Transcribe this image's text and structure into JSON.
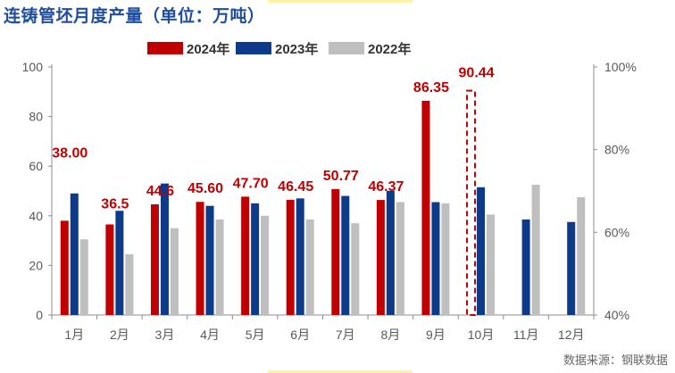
{
  "title": "连铸管坯月度产量（单位：万吨）",
  "source": "数据来源：钢联数据",
  "chart_data": {
    "type": "bar",
    "categories": [
      "1月",
      "2月",
      "3月",
      "4月",
      "5月",
      "6月",
      "7月",
      "8月",
      "9月",
      "10月",
      "11月",
      "12月"
    ],
    "series": [
      {
        "name": "2024年",
        "color": "#c00000",
        "values": [
          38.0,
          36.5,
          44.6,
          45.6,
          47.7,
          46.45,
          50.77,
          46.37,
          86.35,
          90.44,
          null,
          null
        ]
      },
      {
        "name": "2023年",
        "color": "#0e3a8a",
        "values": [
          49,
          42,
          53,
          44,
          45,
          47,
          48,
          50,
          45.5,
          51.5,
          38.5,
          37.5
        ]
      },
      {
        "name": "2022年",
        "color": "#bfbfbf",
        "values": [
          30.5,
          24.5,
          35,
          38.5,
          40,
          38.5,
          37,
          45.5,
          45,
          40.5,
          52.5,
          47.5
        ]
      }
    ],
    "data_labels": [
      "38.00",
      "36.5",
      "44.6",
      "45.60",
      "47.70",
      "46.45",
      "50.77",
      "46.37",
      "86.35",
      "90.44"
    ],
    "ylim": [
      0,
      100
    ],
    "yticks": [
      "0",
      "20",
      "40",
      "60",
      "80",
      "100"
    ],
    "y2ticks": [
      "40%",
      "60%",
      "80%",
      "100%"
    ],
    "y2lim": [
      40,
      100
    ],
    "legend_position": "top",
    "grid": false
  }
}
